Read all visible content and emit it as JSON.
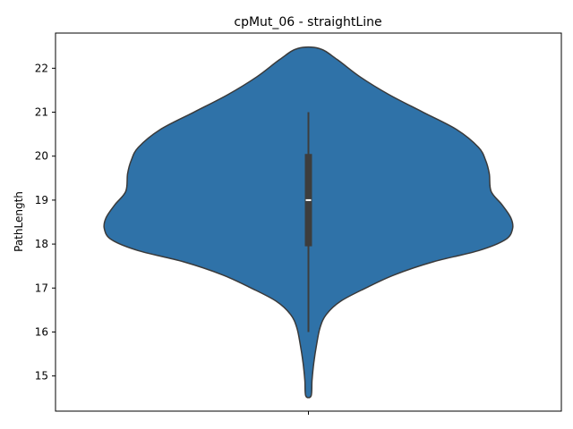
{
  "chart_data": {
    "type": "violin",
    "title": "cpMut_06 - straightLine",
    "xlabel": "",
    "ylabel": "PathLength",
    "ylim": [
      14.2,
      22.8
    ],
    "yticks": [
      15,
      16,
      17,
      18,
      19,
      20,
      21,
      22
    ],
    "grid": false,
    "legend": "none",
    "color": "#2f72a8",
    "edge_color": "#3a3a3a",
    "box_color": "#3d3d3d",
    "series": [
      {
        "x_tick_label": "",
        "box": {
          "whisker_low": 16,
          "q1": 17.95,
          "median": 19,
          "q3": 20.05,
          "whisker_high": 21
        },
        "density_profile": [
          [
            22.45,
            0.06
          ],
          [
            22.2,
            0.16
          ],
          [
            21.8,
            0.29
          ],
          [
            21.4,
            0.45
          ],
          [
            21.0,
            0.64
          ],
          [
            20.6,
            0.83
          ],
          [
            20.2,
            0.95
          ],
          [
            19.9,
            0.99
          ],
          [
            19.6,
            1.01
          ],
          [
            19.2,
            1.02
          ],
          [
            18.9,
            1.08
          ],
          [
            18.6,
            1.13
          ],
          [
            18.35,
            1.14
          ],
          [
            18.1,
            1.1
          ],
          [
            17.85,
            0.95
          ],
          [
            17.6,
            0.7
          ],
          [
            17.3,
            0.48
          ],
          [
            17.0,
            0.32
          ],
          [
            16.7,
            0.18
          ],
          [
            16.4,
            0.1
          ],
          [
            16.1,
            0.065
          ],
          [
            15.7,
            0.045
          ],
          [
            15.3,
            0.03
          ],
          [
            14.9,
            0.02
          ],
          [
            14.55,
            0.015
          ]
        ]
      }
    ]
  }
}
